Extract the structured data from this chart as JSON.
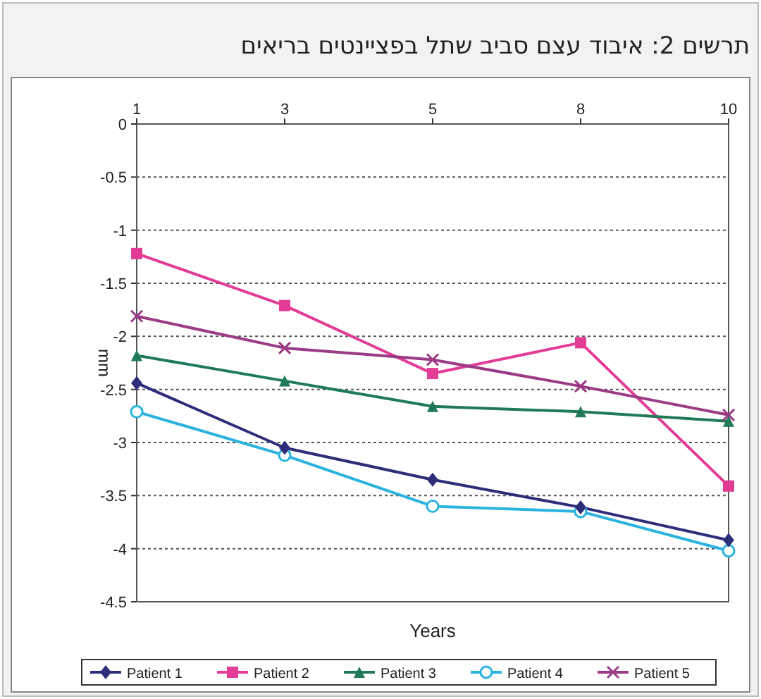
{
  "chart_data": {
    "type": "line",
    "title": "תרשים 2: איבוד עצם סביב שתל בפציינטים בריאים",
    "xlabel": "Years",
    "ylabel": "mm",
    "categories": [
      "1",
      "3",
      "5",
      "8",
      "10"
    ],
    "ylim": [
      -4.5,
      0
    ],
    "yticks": [
      0,
      -0.5,
      -1,
      -1.5,
      -2,
      -2.5,
      -3,
      -3.5,
      -4,
      -4.5
    ],
    "grid": "y",
    "legend": "bottom",
    "line_style": "solid",
    "series": [
      {
        "name": "Patient 1",
        "color": "#2e2d7a",
        "marker": "diamond",
        "values": [
          -2.44,
          -3.05,
          -3.35,
          -3.61,
          -3.92
        ]
      },
      {
        "name": "Patient 2",
        "color": "#e23c96",
        "marker": "square",
        "values": [
          -1.22,
          -1.71,
          -2.35,
          -2.06,
          -3.41
        ]
      },
      {
        "name": "Patient 3",
        "color": "#1f7a55",
        "marker": "triangle",
        "values": [
          -2.18,
          -2.42,
          -2.66,
          -2.71,
          -2.8
        ]
      },
      {
        "name": "Patient 4",
        "color": "#2bb3e0",
        "marker": "circle",
        "values": [
          -2.71,
          -3.12,
          -3.6,
          -3.65,
          -4.02
        ]
      },
      {
        "name": "Patient 5",
        "color": "#9b3a86",
        "marker": "cross",
        "values": [
          -1.81,
          -2.11,
          -2.22,
          -2.47,
          -2.74
        ]
      }
    ]
  }
}
